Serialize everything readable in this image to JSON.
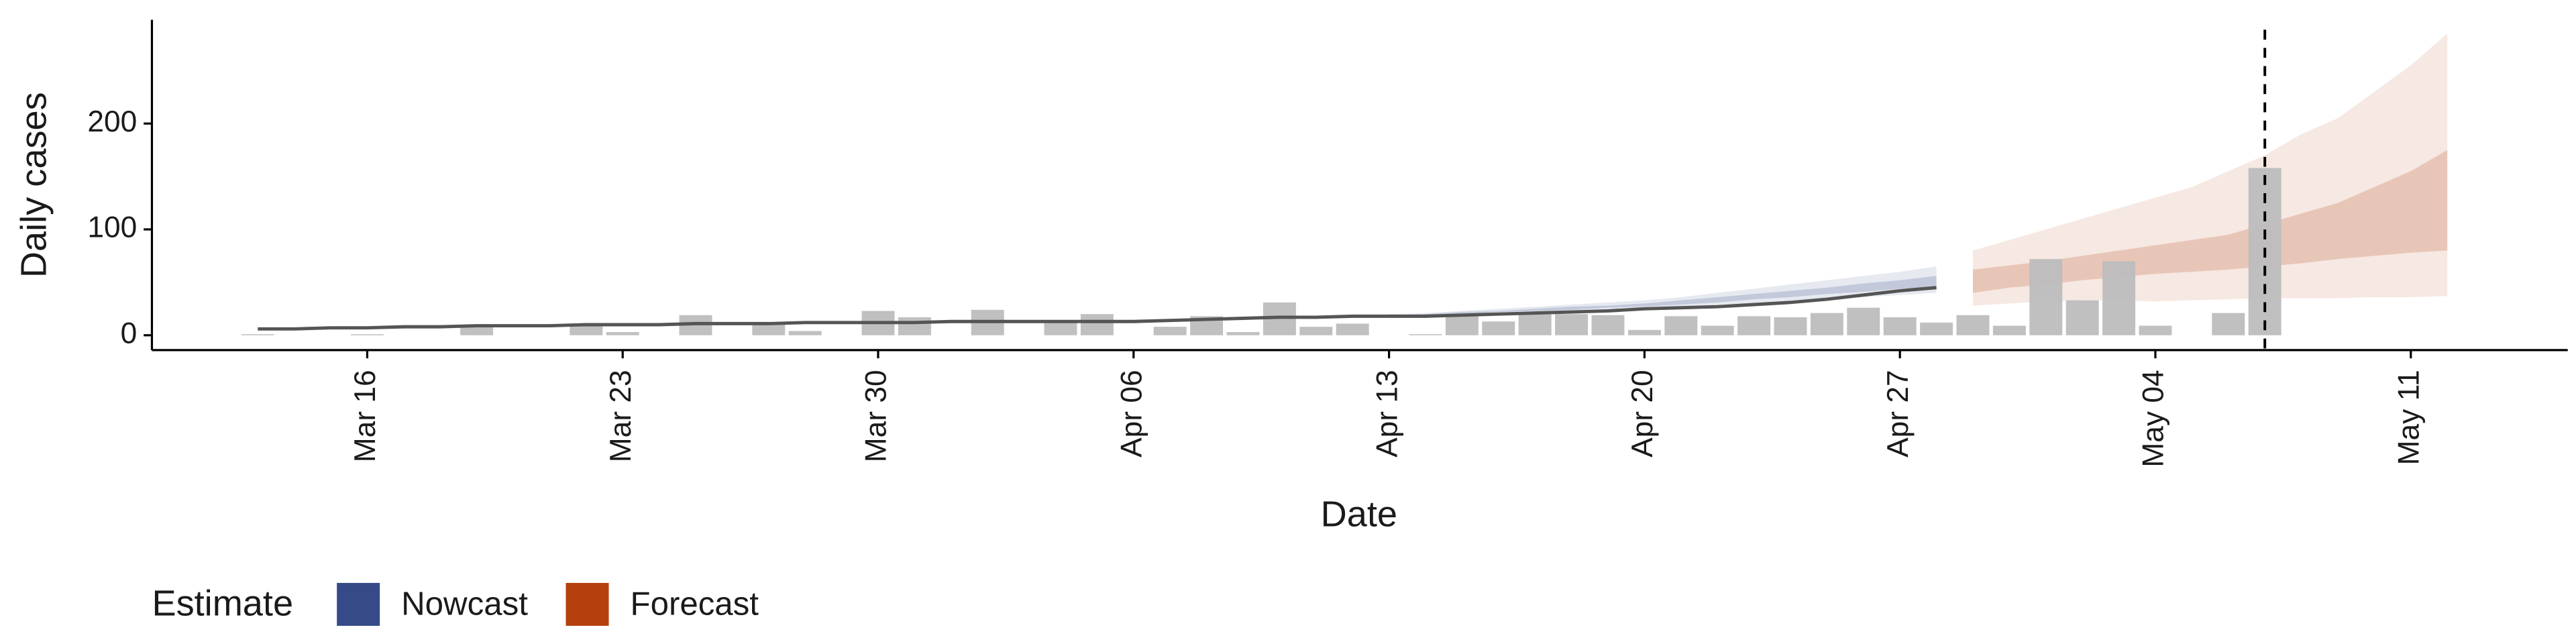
{
  "chart_data": {
    "type": "bar",
    "xlabel": "Date",
    "ylabel": "Daily cases",
    "legend_title": "Estimate",
    "x": [
      "Mar 13",
      "Mar 14",
      "Mar 15",
      "Mar 16",
      "Mar 17",
      "Mar 18",
      "Mar 19",
      "Mar 20",
      "Mar 21",
      "Mar 22",
      "Mar 23",
      "Mar 24",
      "Mar 25",
      "Mar 26",
      "Mar 27",
      "Mar 28",
      "Mar 29",
      "Mar 30",
      "Mar 31",
      "Apr 01",
      "Apr 02",
      "Apr 03",
      "Apr 04",
      "Apr 05",
      "Apr 06",
      "Apr 07",
      "Apr 08",
      "Apr 09",
      "Apr 10",
      "Apr 11",
      "Apr 12",
      "Apr 13",
      "Apr 14",
      "Apr 15",
      "Apr 16",
      "Apr 17",
      "Apr 18",
      "Apr 19",
      "Apr 20",
      "Apr 21",
      "Apr 22",
      "Apr 23",
      "Apr 24",
      "Apr 25",
      "Apr 26",
      "Apr 27",
      "Apr 28",
      "Apr 29",
      "Apr 30",
      "May 01",
      "May 02",
      "May 03",
      "May 04",
      "May 05",
      "May 06",
      "May 07",
      "May 08",
      "May 09",
      "May 10",
      "May 11",
      "May 12"
    ],
    "values": [
      1,
      0,
      0,
      1,
      0,
      0,
      9,
      0,
      0,
      10,
      3,
      0,
      19,
      0,
      10,
      4,
      0,
      23,
      17,
      0,
      24,
      0,
      12,
      20,
      0,
      8,
      18,
      3,
      31,
      8,
      11,
      0,
      1,
      18,
      13,
      20,
      20,
      19,
      5,
      18,
      9,
      18,
      17,
      21,
      26,
      17,
      12,
      19,
      9,
      72,
      33,
      70,
      9,
      0,
      21,
      158,
      null,
      null,
      null,
      null,
      null
    ],
    "color": "#bdbdbd",
    "line": {
      "color": "#555555",
      "values": [
        6,
        6,
        7,
        7,
        8,
        8,
        9,
        9,
        9,
        10,
        10,
        10,
        11,
        11,
        11,
        12,
        12,
        12,
        12,
        13,
        13,
        13,
        13,
        13,
        13,
        14,
        15,
        16,
        17,
        17,
        18,
        18,
        18,
        19,
        20,
        21,
        22,
        23,
        25,
        26,
        27,
        29,
        31,
        34,
        38,
        42,
        45,
        null,
        null,
        null,
        null,
        null,
        null,
        null,
        null,
        null,
        null,
        null,
        null,
        null,
        null
      ]
    },
    "series": [
      {
        "name": "Nowcast",
        "color": "#354a87",
        "x": [
          "Apr 13",
          "Apr 14",
          "Apr 15",
          "Apr 16",
          "Apr 17",
          "Apr 18",
          "Apr 19",
          "Apr 20",
          "Apr 21",
          "Apr 22",
          "Apr 23",
          "Apr 24",
          "Apr 25",
          "Apr 26",
          "Apr 27",
          "Apr 28"
        ],
        "lower90": [
          17,
          18,
          19,
          20,
          21,
          22,
          23,
          24,
          26,
          28,
          30,
          32,
          34,
          36,
          38,
          40
        ],
        "upper90": [
          20,
          21,
          23,
          25,
          27,
          29,
          31,
          33,
          36,
          40,
          44,
          48,
          52,
          56,
          60,
          65
        ],
        "lower50": [
          18,
          19,
          20,
          22,
          23,
          24,
          26,
          27,
          29,
          31,
          34,
          36,
          39,
          41,
          44,
          46
        ],
        "upper50": [
          19,
          20,
          22,
          23,
          25,
          27,
          28,
          30,
          33,
          36,
          39,
          42,
          45,
          49,
          52,
          56
        ]
      },
      {
        "name": "Forecast",
        "color": "#b5400e",
        "x": [
          "Apr 29",
          "Apr 30",
          "May 01",
          "May 02",
          "May 03",
          "May 04",
          "May 05",
          "May 06",
          "May 07",
          "May 08",
          "May 09",
          "May 10",
          "May 11",
          "May 12"
        ],
        "lower90": [
          28,
          30,
          32,
          33,
          33,
          32,
          33,
          34,
          35,
          35,
          35,
          36,
          36,
          37
        ],
        "upper90": [
          80,
          90,
          100,
          110,
          120,
          130,
          140,
          155,
          170,
          190,
          205,
          230,
          255,
          285
        ],
        "lower50": [
          40,
          45,
          48,
          52,
          55,
          58,
          60,
          62,
          65,
          68,
          72,
          75,
          78,
          80
        ],
        "upper50": [
          62,
          66,
          70,
          75,
          80,
          85,
          90,
          95,
          105,
          115,
          125,
          140,
          155,
          175
        ]
      }
    ],
    "vline": "May 07",
    "ylim": [
      -14,
      298
    ],
    "yticks": [
      0,
      100,
      200
    ],
    "xticks": [
      "Mar 16",
      "Mar 23",
      "Mar 30",
      "Apr 06",
      "Apr 13",
      "Apr 20",
      "Apr 27",
      "May 04",
      "May 11"
    ]
  }
}
